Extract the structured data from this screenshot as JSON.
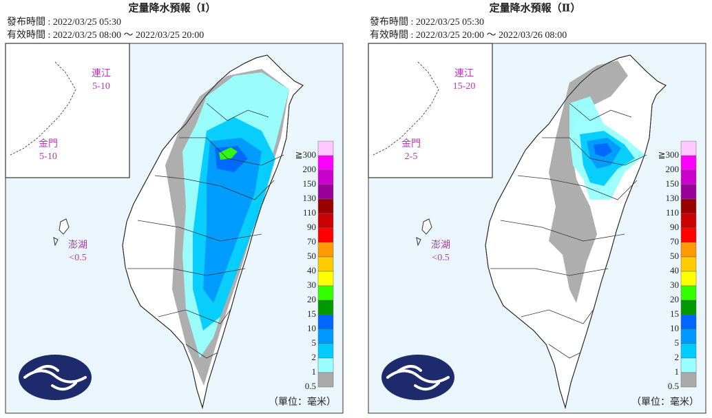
{
  "legend": {
    "items": [
      {
        "label": "≧300",
        "color": "#ffc8ff"
      },
      {
        "label": "200",
        "color": "#ff00ff"
      },
      {
        "label": "150",
        "color": "#cc00cc"
      },
      {
        "label": "130",
        "color": "#990099"
      },
      {
        "label": "110",
        "color": "#990000"
      },
      {
        "label": "90",
        "color": "#cc0000"
      },
      {
        "label": "70",
        "color": "#ff0000"
      },
      {
        "label": "50",
        "color": "#ff9900"
      },
      {
        "label": "40",
        "color": "#ffcc00"
      },
      {
        "label": "30",
        "color": "#ffff00"
      },
      {
        "label": "20",
        "color": "#33ff00"
      },
      {
        "label": "15",
        "color": "#009900"
      },
      {
        "label": "10",
        "color": "#0066ff"
      },
      {
        "label": "5",
        "color": "#0099ff"
      },
      {
        "label": "2",
        "color": "#00ccff"
      },
      {
        "label": "1",
        "color": "#99ffff"
      },
      {
        "label": "0.5",
        "color": "#aaaaaa"
      }
    ],
    "unit": "（單位：毫米）"
  },
  "panels": [
    {
      "title": "定量降水預報（Ⅰ）",
      "issued": "發布時間 : 2022/03/25 05:30",
      "valid": "有效時間 : 2022/03/25 08:00 ～ 2022/03/25 20:00",
      "islands": [
        {
          "name": "連江",
          "value": "5-10"
        },
        {
          "name": "金門",
          "value": "5-10"
        },
        {
          "name": "澎湖",
          "value": "<0.5"
        }
      ]
    },
    {
      "title": "定量降水預報（Ⅱ）",
      "issued": "發布時間 : 2022/03/25 05:30",
      "valid": "有效時間 : 2022/03/25 20:00 ～ 2022/03/26 08:00",
      "islands": [
        {
          "name": "連江",
          "value": "15-20"
        },
        {
          "name": "金門",
          "value": "2-5"
        },
        {
          "name": "澎湖",
          "value": "<0.5"
        }
      ]
    }
  ]
}
